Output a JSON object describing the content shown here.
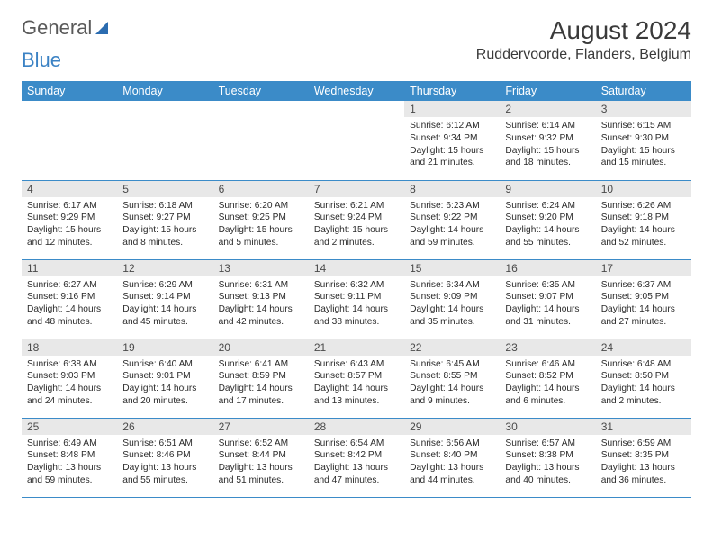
{
  "brand": {
    "part1": "General",
    "part2": "Blue"
  },
  "title": "August 2024",
  "location": "Ruddervoorde, Flanders, Belgium",
  "colors": {
    "header_bg": "#3b8bc8",
    "header_fg": "#ffffff",
    "daynum_bg": "#e8e8e8",
    "row_border": "#3b8bc8",
    "text": "#2a2a2a",
    "brand_gray": "#595959",
    "brand_blue": "#3b82c4"
  },
  "weekdays": [
    "Sunday",
    "Monday",
    "Tuesday",
    "Wednesday",
    "Thursday",
    "Friday",
    "Saturday"
  ],
  "weeks": [
    [
      {
        "day": "",
        "sunrise": "",
        "sunset": "",
        "daylight": ""
      },
      {
        "day": "",
        "sunrise": "",
        "sunset": "",
        "daylight": ""
      },
      {
        "day": "",
        "sunrise": "",
        "sunset": "",
        "daylight": ""
      },
      {
        "day": "",
        "sunrise": "",
        "sunset": "",
        "daylight": ""
      },
      {
        "day": "1",
        "sunrise": "Sunrise: 6:12 AM",
        "sunset": "Sunset: 9:34 PM",
        "daylight": "Daylight: 15 hours and 21 minutes."
      },
      {
        "day": "2",
        "sunrise": "Sunrise: 6:14 AM",
        "sunset": "Sunset: 9:32 PM",
        "daylight": "Daylight: 15 hours and 18 minutes."
      },
      {
        "day": "3",
        "sunrise": "Sunrise: 6:15 AM",
        "sunset": "Sunset: 9:30 PM",
        "daylight": "Daylight: 15 hours and 15 minutes."
      }
    ],
    [
      {
        "day": "4",
        "sunrise": "Sunrise: 6:17 AM",
        "sunset": "Sunset: 9:29 PM",
        "daylight": "Daylight: 15 hours and 12 minutes."
      },
      {
        "day": "5",
        "sunrise": "Sunrise: 6:18 AM",
        "sunset": "Sunset: 9:27 PM",
        "daylight": "Daylight: 15 hours and 8 minutes."
      },
      {
        "day": "6",
        "sunrise": "Sunrise: 6:20 AM",
        "sunset": "Sunset: 9:25 PM",
        "daylight": "Daylight: 15 hours and 5 minutes."
      },
      {
        "day": "7",
        "sunrise": "Sunrise: 6:21 AM",
        "sunset": "Sunset: 9:24 PM",
        "daylight": "Daylight: 15 hours and 2 minutes."
      },
      {
        "day": "8",
        "sunrise": "Sunrise: 6:23 AM",
        "sunset": "Sunset: 9:22 PM",
        "daylight": "Daylight: 14 hours and 59 minutes."
      },
      {
        "day": "9",
        "sunrise": "Sunrise: 6:24 AM",
        "sunset": "Sunset: 9:20 PM",
        "daylight": "Daylight: 14 hours and 55 minutes."
      },
      {
        "day": "10",
        "sunrise": "Sunrise: 6:26 AM",
        "sunset": "Sunset: 9:18 PM",
        "daylight": "Daylight: 14 hours and 52 minutes."
      }
    ],
    [
      {
        "day": "11",
        "sunrise": "Sunrise: 6:27 AM",
        "sunset": "Sunset: 9:16 PM",
        "daylight": "Daylight: 14 hours and 48 minutes."
      },
      {
        "day": "12",
        "sunrise": "Sunrise: 6:29 AM",
        "sunset": "Sunset: 9:14 PM",
        "daylight": "Daylight: 14 hours and 45 minutes."
      },
      {
        "day": "13",
        "sunrise": "Sunrise: 6:31 AM",
        "sunset": "Sunset: 9:13 PM",
        "daylight": "Daylight: 14 hours and 42 minutes."
      },
      {
        "day": "14",
        "sunrise": "Sunrise: 6:32 AM",
        "sunset": "Sunset: 9:11 PM",
        "daylight": "Daylight: 14 hours and 38 minutes."
      },
      {
        "day": "15",
        "sunrise": "Sunrise: 6:34 AM",
        "sunset": "Sunset: 9:09 PM",
        "daylight": "Daylight: 14 hours and 35 minutes."
      },
      {
        "day": "16",
        "sunrise": "Sunrise: 6:35 AM",
        "sunset": "Sunset: 9:07 PM",
        "daylight": "Daylight: 14 hours and 31 minutes."
      },
      {
        "day": "17",
        "sunrise": "Sunrise: 6:37 AM",
        "sunset": "Sunset: 9:05 PM",
        "daylight": "Daylight: 14 hours and 27 minutes."
      }
    ],
    [
      {
        "day": "18",
        "sunrise": "Sunrise: 6:38 AM",
        "sunset": "Sunset: 9:03 PM",
        "daylight": "Daylight: 14 hours and 24 minutes."
      },
      {
        "day": "19",
        "sunrise": "Sunrise: 6:40 AM",
        "sunset": "Sunset: 9:01 PM",
        "daylight": "Daylight: 14 hours and 20 minutes."
      },
      {
        "day": "20",
        "sunrise": "Sunrise: 6:41 AM",
        "sunset": "Sunset: 8:59 PM",
        "daylight": "Daylight: 14 hours and 17 minutes."
      },
      {
        "day": "21",
        "sunrise": "Sunrise: 6:43 AM",
        "sunset": "Sunset: 8:57 PM",
        "daylight": "Daylight: 14 hours and 13 minutes."
      },
      {
        "day": "22",
        "sunrise": "Sunrise: 6:45 AM",
        "sunset": "Sunset: 8:55 PM",
        "daylight": "Daylight: 14 hours and 9 minutes."
      },
      {
        "day": "23",
        "sunrise": "Sunrise: 6:46 AM",
        "sunset": "Sunset: 8:52 PM",
        "daylight": "Daylight: 14 hours and 6 minutes."
      },
      {
        "day": "24",
        "sunrise": "Sunrise: 6:48 AM",
        "sunset": "Sunset: 8:50 PM",
        "daylight": "Daylight: 14 hours and 2 minutes."
      }
    ],
    [
      {
        "day": "25",
        "sunrise": "Sunrise: 6:49 AM",
        "sunset": "Sunset: 8:48 PM",
        "daylight": "Daylight: 13 hours and 59 minutes."
      },
      {
        "day": "26",
        "sunrise": "Sunrise: 6:51 AM",
        "sunset": "Sunset: 8:46 PM",
        "daylight": "Daylight: 13 hours and 55 minutes."
      },
      {
        "day": "27",
        "sunrise": "Sunrise: 6:52 AM",
        "sunset": "Sunset: 8:44 PM",
        "daylight": "Daylight: 13 hours and 51 minutes."
      },
      {
        "day": "28",
        "sunrise": "Sunrise: 6:54 AM",
        "sunset": "Sunset: 8:42 PM",
        "daylight": "Daylight: 13 hours and 47 minutes."
      },
      {
        "day": "29",
        "sunrise": "Sunrise: 6:56 AM",
        "sunset": "Sunset: 8:40 PM",
        "daylight": "Daylight: 13 hours and 44 minutes."
      },
      {
        "day": "30",
        "sunrise": "Sunrise: 6:57 AM",
        "sunset": "Sunset: 8:38 PM",
        "daylight": "Daylight: 13 hours and 40 minutes."
      },
      {
        "day": "31",
        "sunrise": "Sunrise: 6:59 AM",
        "sunset": "Sunset: 8:35 PM",
        "daylight": "Daylight: 13 hours and 36 minutes."
      }
    ]
  ]
}
